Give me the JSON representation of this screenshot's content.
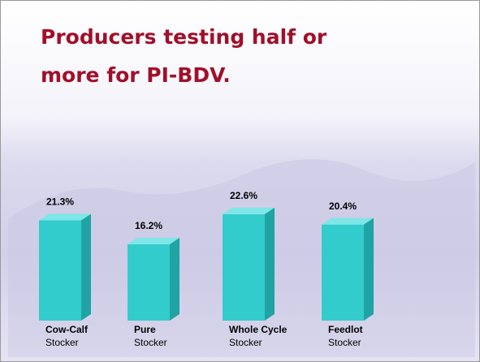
{
  "chart_data": {
    "type": "bar3d",
    "title_lines": [
      "Producers testing half or",
      "more for PI-BDV."
    ],
    "categories": [
      "Cow-Calf",
      "Pure",
      "Whole Cycle",
      "Feedlot"
    ],
    "category_sublabels": [
      "Stocker",
      "Stocker",
      "Stocker",
      "Stocker"
    ],
    "values": [
      21.3,
      16.2,
      22.6,
      20.4
    ],
    "value_labels": [
      "21.3%",
      "16.2%",
      "22.6%",
      "20.4%"
    ],
    "color": "#33cccc"
  }
}
